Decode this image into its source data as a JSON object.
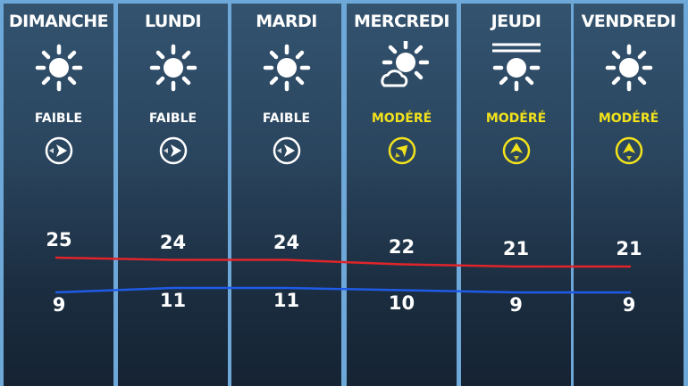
{
  "days": [
    {
      "name": "DIMANCHE",
      "weather_icon": "sun-icon",
      "wind_level": "FAIBLE",
      "wind_color": "#ffffff",
      "wind_direction": "east",
      "high": "25",
      "low": "9"
    },
    {
      "name": "LUNDI",
      "weather_icon": "sun-icon",
      "wind_level": "FAIBLE",
      "wind_color": "#ffffff",
      "wind_direction": "east",
      "high": "24",
      "low": "11"
    },
    {
      "name": "MARDI",
      "weather_icon": "sun-icon",
      "wind_level": "FAIBLE",
      "wind_color": "#ffffff",
      "wind_direction": "east",
      "high": "24",
      "low": "11"
    },
    {
      "name": "MERCREDI",
      "weather_icon": "sun-cloud-icon",
      "wind_level": "MODÉRÉ",
      "wind_color": "#f2e21c",
      "wind_direction": "northeast",
      "high": "22",
      "low": "10"
    },
    {
      "name": "JEUDI",
      "weather_icon": "sun-haze-icon",
      "wind_level": "MODÉRÉ",
      "wind_color": "#f2e21c",
      "wind_direction": "north",
      "high": "21",
      "low": "9"
    },
    {
      "name": "VENDREDI",
      "weather_icon": "sun-icon",
      "wind_level": "MODÉRÉ",
      "wind_color": "#f2e21c",
      "wind_direction": "north",
      "high": "21",
      "low": "9"
    }
  ],
  "colors": {
    "high_line": "#e0252a",
    "low_line": "#1f5be8",
    "border": "#6ea8d8"
  }
}
